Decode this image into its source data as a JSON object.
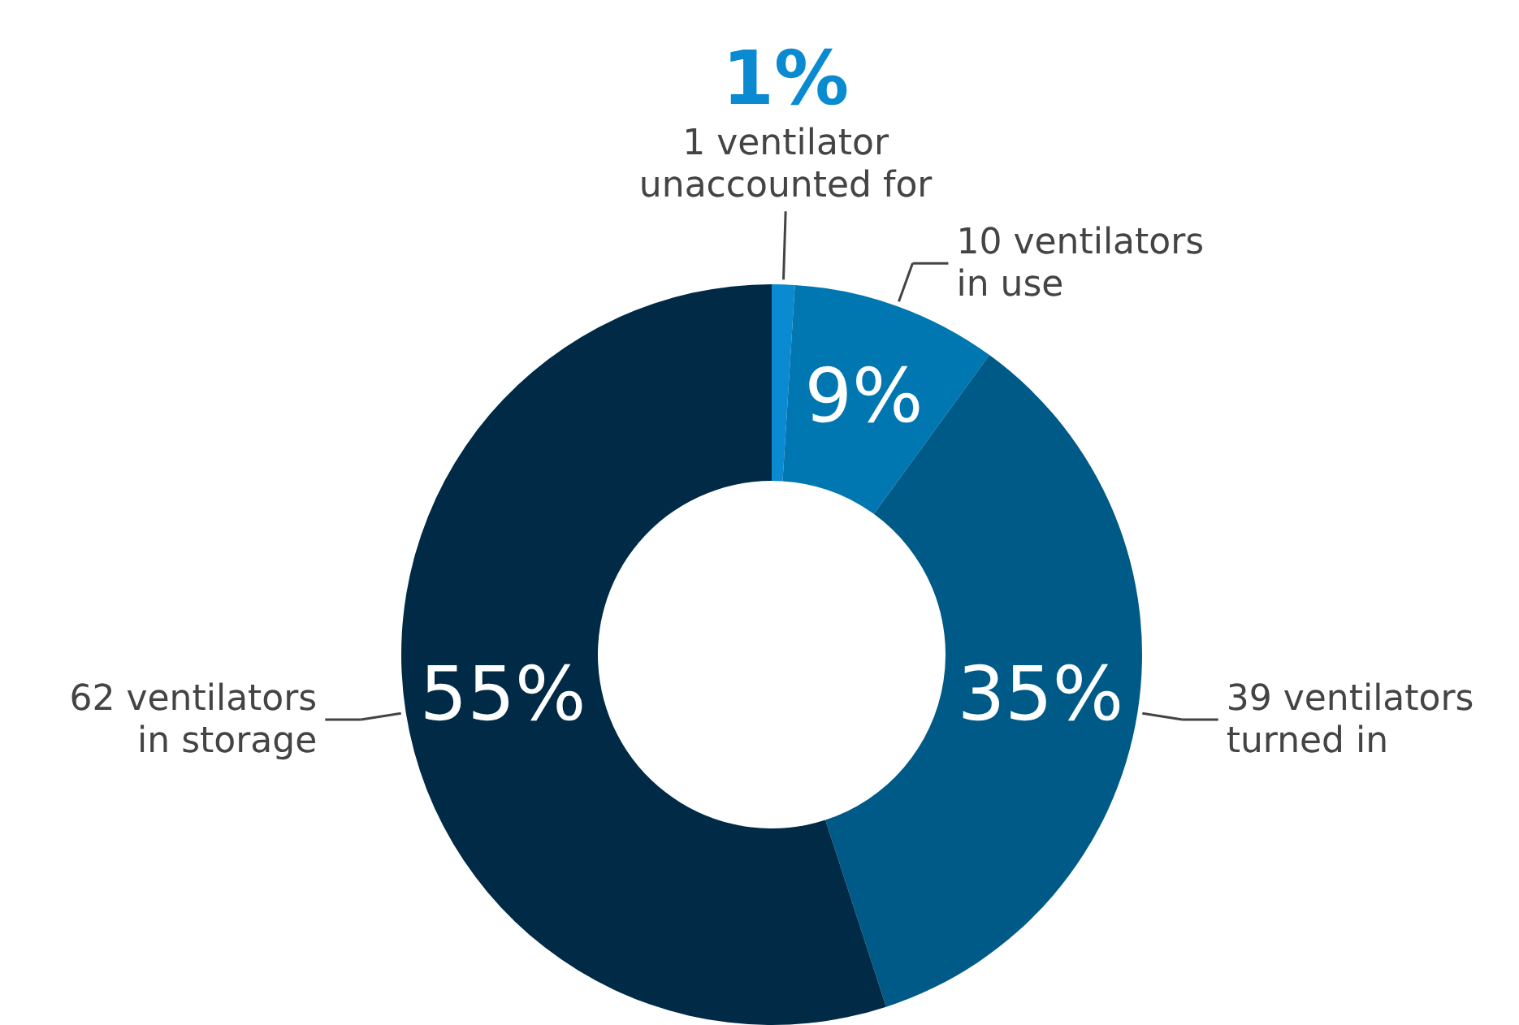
{
  "chart_data": {
    "type": "donut",
    "categories": [
      "1 ventilator\nunaccounted for",
      "10 ventilators\nin use",
      "39 ventilators\nturned in",
      "62 ventilators\nin storage"
    ],
    "values": [
      1,
      9,
      35,
      55
    ],
    "colors": [
      "#0a8ad0",
      "#0077b0",
      "#005a87",
      "#002a45"
    ],
    "value_labels": [
      "1%",
      "9%",
      "35%",
      "55%"
    ]
  }
}
